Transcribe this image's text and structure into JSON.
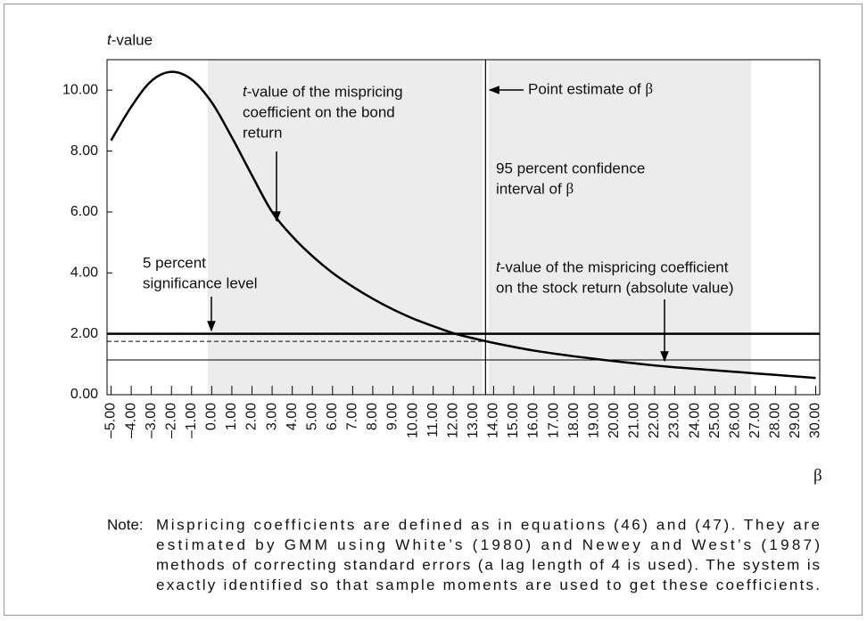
{
  "chart_data": {
    "type": "line",
    "y_label": "t-value",
    "x_label": "β",
    "x": [
      -5,
      -4,
      -3,
      -2,
      -1,
      0,
      1,
      2,
      3,
      4,
      5,
      6,
      7,
      8,
      9,
      10,
      11,
      12,
      13,
      14,
      15,
      16,
      17,
      18,
      19,
      20,
      21,
      22,
      23,
      24,
      25,
      26,
      27,
      28,
      29,
      30
    ],
    "values": [
      8.35,
      9.45,
      10.3,
      10.6,
      10.35,
      9.6,
      8.45,
      7.2,
      6.0,
      5.2,
      4.55,
      4.0,
      3.55,
      3.15,
      2.8,
      2.5,
      2.25,
      2.02,
      1.85,
      1.7,
      1.57,
      1.45,
      1.35,
      1.26,
      1.18,
      1.1,
      1.03,
      0.96,
      0.9,
      0.85,
      0.8,
      0.75,
      0.7,
      0.65,
      0.6,
      0.55
    ],
    "color": "#000000",
    "xlim": [
      -5.2,
      30.2
    ],
    "ylim": [
      0,
      11
    ],
    "xticks": [
      {
        "value": -5,
        "label": "–5.00"
      },
      {
        "value": -4,
        "label": "–4.00"
      },
      {
        "value": -3,
        "label": "–3.00"
      },
      {
        "value": -2,
        "label": "–2.00"
      },
      {
        "value": -1,
        "label": "–1.00"
      },
      {
        "value": 0,
        "label": "0.00"
      },
      {
        "value": 1,
        "label": "1.00"
      },
      {
        "value": 2,
        "label": "2.00"
      },
      {
        "value": 3,
        "label": "3.00"
      },
      {
        "value": 4,
        "label": "4.00"
      },
      {
        "value": 5,
        "label": "5.00"
      },
      {
        "value": 6,
        "label": "6.00"
      },
      {
        "value": 7,
        "label": "7.00"
      },
      {
        "value": 8,
        "label": "8.00"
      },
      {
        "value": 9,
        "label": "9.00"
      },
      {
        "value": 10,
        "label": "10.00"
      },
      {
        "value": 11,
        "label": "11.00"
      },
      {
        "value": 12,
        "label": "12.00"
      },
      {
        "value": 13,
        "label": "13.00"
      },
      {
        "value": 14,
        "label": "14.00"
      },
      {
        "value": 15,
        "label": "15.00"
      },
      {
        "value": 16,
        "label": "16.00"
      },
      {
        "value": 17,
        "label": "17.00"
      },
      {
        "value": 18,
        "label": "18.00"
      },
      {
        "value": 19,
        "label": "19.00"
      },
      {
        "value": 20,
        "label": "20.00"
      },
      {
        "value": 21,
        "label": "21.00"
      },
      {
        "value": 22,
        "label": "22.00"
      },
      {
        "value": 23,
        "label": "23.00"
      },
      {
        "value": 24,
        "label": "24.00"
      },
      {
        "value": 25,
        "label": "25.00"
      },
      {
        "value": 26,
        "label": "26.00"
      },
      {
        "value": 27,
        "label": "27.00"
      },
      {
        "value": 28,
        "label": "28.00"
      },
      {
        "value": 29,
        "label": "29.00"
      },
      {
        "value": 30,
        "label": "30.00"
      }
    ],
    "yticks": [
      {
        "value": 0,
        "label": "0.00"
      },
      {
        "value": 2,
        "label": "2.00"
      },
      {
        "value": 4,
        "label": "4.00"
      },
      {
        "value": 6,
        "label": "6.00"
      },
      {
        "value": 8,
        "label": "8.00"
      },
      {
        "value": 10,
        "label": "10.00"
      }
    ],
    "confidence_interval": [
      -0.2,
      26.8
    ],
    "point_estimate": 13.6,
    "hlines": [
      {
        "y": 2.0,
        "style": "thick"
      },
      {
        "y": 1.75,
        "style": "dashed"
      },
      {
        "y": 1.14,
        "style": "thin"
      }
    ],
    "annotations": [
      {
        "lines": [
          "t-value of the mispricing",
          "coefficient on the bond",
          "return"
        ]
      },
      {
        "lines": [
          "Point estimate of β"
        ]
      },
      {
        "lines": [
          "95 percent confidence",
          "interval of β"
        ]
      },
      {
        "lines": [
          "5 percent",
          "significance level"
        ]
      },
      {
        "lines": [
          "t-value of the mispricing coefficient",
          "on the stock return (absolute value)"
        ]
      }
    ],
    "note": {
      "label": "Note:",
      "lines": [
        "Mispricing coefficients are defined as in equations (46) and (47). They are",
        "estimated by GMM using White’s (1980) and Newey and West’s (1987)",
        "methods of correcting standard errors (a lag length of 4 is used). The system is",
        "exactly identified so that sample moments are used to get these coefficients."
      ]
    }
  }
}
